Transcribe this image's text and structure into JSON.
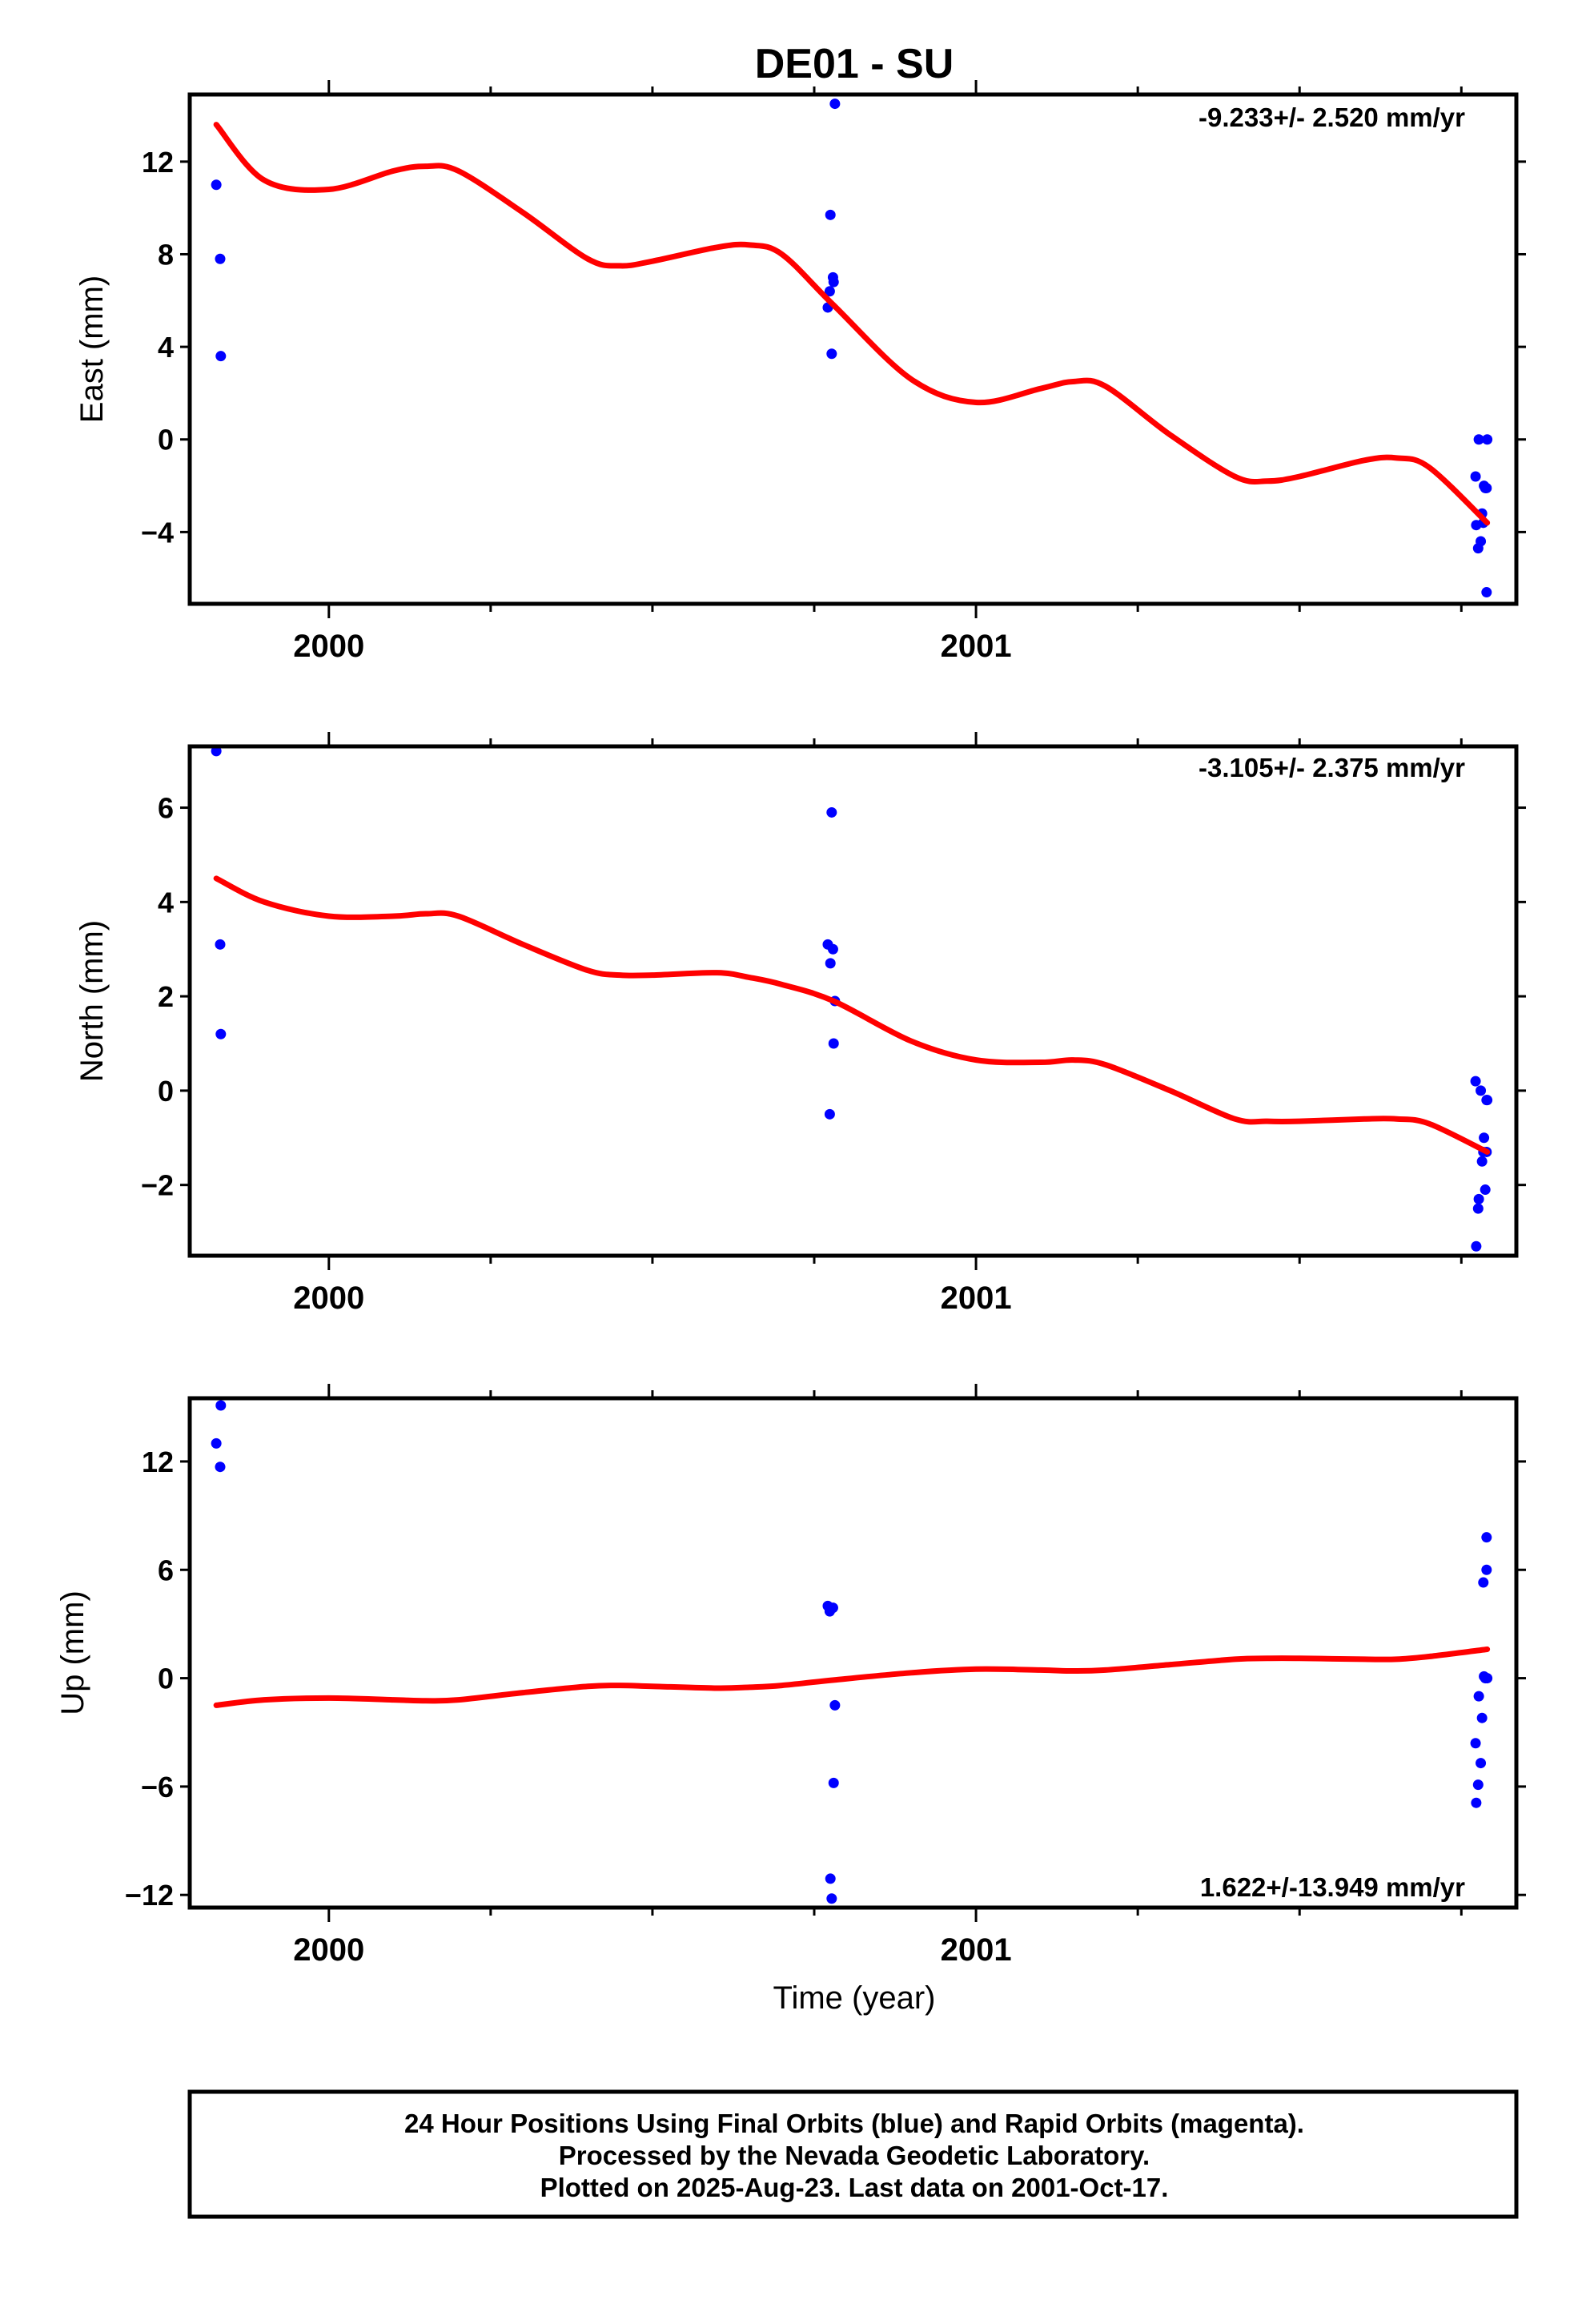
{
  "figure": {
    "title": "DE01 - SU",
    "xlabel": "Time (year)",
    "footer": [
      "24 Hour Positions Using Final Orbits (blue) and Rapid Orbits (magenta).",
      "Processed by the Nevada Geodetic Laboratory.",
      "Plotted on 2025-Aug-23. Last data on 2001-Oct-17."
    ]
  },
  "colors": {
    "points": "#0000ff",
    "fit": "#ff0000",
    "frame": "#000000"
  },
  "chart_data": [
    {
      "type": "scatter",
      "panel": "east",
      "ylabel": "East (mm)",
      "rate_text": "-9.233+/- 2.520 mm/yr",
      "rate_position": "top-right",
      "xlim": [
        1999.785,
        2001.835
      ],
      "ylim": [
        -7.1,
        14.9
      ],
      "xticks_major": [
        2000,
        2001
      ],
      "xticks_major_labels": [
        "2000",
        "2001"
      ],
      "xticks_minor": [
        2000.25,
        2000.5,
        2000.75,
        2001.25,
        2001.5,
        2001.75
      ],
      "yticks": [
        -4,
        0,
        4,
        8,
        12
      ],
      "yticks_labels": [
        "−4",
        "0",
        "4",
        "8",
        "12"
      ],
      "grid": false,
      "series": [
        {
          "style": "points",
          "x": [
            1999.826,
            1999.832,
            1999.833,
            2000.771,
            2000.774,
            2000.775,
            2000.777,
            2000.779,
            2000.78,
            2000.782,
            2001.772,
            2001.773,
            2001.776,
            2001.777,
            2001.78,
            2001.782,
            2001.784,
            2001.785,
            2001.787,
            2001.789,
            2001.789,
            2001.79
          ],
          "y": [
            11.0,
            7.8,
            3.6,
            5.7,
            6.4,
            9.7,
            3.7,
            7.0,
            6.8,
            14.5,
            -1.6,
            -3.7,
            -4.7,
            0.0,
            -4.4,
            -3.2,
            -3.6,
            -2.0,
            -2.1,
            -6.6,
            -2.1,
            0.0
          ]
        },
        {
          "style": "line",
          "x": [
            1999.826,
            1999.9,
            2000.0,
            2000.1,
            2000.15,
            2000.2,
            2000.3,
            2000.4,
            2000.45,
            2000.5,
            2000.6,
            2000.65,
            2000.7,
            2000.78,
            2000.9,
            2001.0,
            2001.1,
            2001.15,
            2001.2,
            2001.3,
            2001.4,
            2001.45,
            2001.5,
            2001.6,
            2001.65,
            2001.7,
            2001.79
          ],
          "y": [
            13.6,
            11.2,
            10.8,
            11.6,
            11.8,
            11.6,
            9.8,
            7.8,
            7.5,
            7.7,
            8.3,
            8.4,
            8.0,
            5.8,
            2.6,
            1.6,
            2.2,
            2.5,
            2.3,
            0.2,
            -1.6,
            -1.8,
            -1.6,
            -0.9,
            -0.8,
            -1.2,
            -3.6
          ]
        }
      ]
    },
    {
      "type": "scatter",
      "panel": "north",
      "ylabel": "North (mm)",
      "rate_text": "-3.105+/- 2.375 mm/yr",
      "rate_position": "top-right",
      "xlim": [
        1999.785,
        2001.835
      ],
      "ylim": [
        -3.5,
        7.3
      ],
      "xticks_major": [
        2000,
        2001
      ],
      "xticks_major_labels": [
        "2000",
        "2001"
      ],
      "xticks_minor": [
        2000.25,
        2000.5,
        2000.75,
        2001.25,
        2001.5,
        2001.75
      ],
      "yticks": [
        -2,
        0,
        2,
        4,
        6
      ],
      "yticks_labels": [
        "−2",
        "0",
        "2",
        "4",
        "6"
      ],
      "grid": false,
      "series": [
        {
          "style": "points",
          "x": [
            1999.826,
            1999.832,
            1999.833,
            2000.771,
            2000.774,
            2000.775,
            2000.777,
            2000.779,
            2000.78,
            2000.782,
            2001.772,
            2001.773,
            2001.776,
            2001.777,
            2001.78,
            2001.782,
            2001.784,
            2001.785,
            2001.787,
            2001.789,
            2001.789,
            2001.79
          ],
          "y": [
            7.2,
            3.1,
            1.2,
            3.1,
            -0.5,
            2.7,
            5.9,
            3.0,
            1.0,
            1.9,
            0.2,
            -3.3,
            -2.5,
            -2.3,
            0.0,
            -1.5,
            -1.3,
            -1.0,
            -2.1,
            -0.2,
            -1.3,
            -0.2
          ]
        },
        {
          "style": "line",
          "x": [
            1999.826,
            1999.9,
            2000.0,
            2000.1,
            2000.15,
            2000.2,
            2000.3,
            2000.4,
            2000.45,
            2000.5,
            2000.6,
            2000.65,
            2000.7,
            2000.78,
            2000.9,
            2001.0,
            2001.1,
            2001.15,
            2001.2,
            2001.3,
            2001.4,
            2001.45,
            2001.5,
            2001.6,
            2001.65,
            2001.7,
            2001.79
          ],
          "y": [
            4.5,
            4.0,
            3.7,
            3.7,
            3.75,
            3.7,
            3.1,
            2.55,
            2.45,
            2.45,
            2.5,
            2.4,
            2.25,
            1.9,
            1.05,
            0.65,
            0.6,
            0.65,
            0.55,
            0.0,
            -0.6,
            -0.65,
            -0.65,
            -0.6,
            -0.6,
            -0.7,
            -1.3
          ]
        }
      ]
    },
    {
      "type": "scatter",
      "panel": "up",
      "ylabel": "Up (mm)",
      "rate_text": "1.622+/-13.949 mm/yr",
      "rate_position": "bottom-right",
      "xlim": [
        1999.785,
        2001.835
      ],
      "ylim": [
        -12.7,
        15.5
      ],
      "xticks_major": [
        2000,
        2001
      ],
      "xticks_major_labels": [
        "2000",
        "2001"
      ],
      "xticks_minor": [
        2000.25,
        2000.5,
        2000.75,
        2001.25,
        2001.5,
        2001.75
      ],
      "yticks": [
        -12,
        -6,
        0,
        6,
        12
      ],
      "yticks_labels": [
        "−12",
        "−6",
        "0",
        "6",
        "12"
      ],
      "grid": false,
      "series": [
        {
          "style": "points",
          "x": [
            1999.826,
            1999.832,
            1999.833,
            2000.771,
            2000.774,
            2000.775,
            2000.777,
            2000.779,
            2000.78,
            2000.782,
            2001.772,
            2001.773,
            2001.776,
            2001.777,
            2001.78,
            2001.782,
            2001.784,
            2001.785,
            2001.787,
            2001.789,
            2001.789,
            2001.79
          ],
          "y": [
            13.0,
            11.7,
            15.1,
            4.0,
            3.7,
            -11.1,
            -12.2,
            3.9,
            -5.8,
            -1.5,
            -3.6,
            -6.9,
            -5.9,
            -1.0,
            -4.7,
            -2.2,
            5.3,
            0.1,
            0.0,
            7.8,
            6.0,
            0.0
          ]
        },
        {
          "style": "line",
          "x": [
            1999.826,
            1999.9,
            2000.0,
            2000.1,
            2000.15,
            2000.2,
            2000.3,
            2000.4,
            2000.45,
            2000.5,
            2000.6,
            2000.65,
            2000.7,
            2000.78,
            2000.9,
            2001.0,
            2001.1,
            2001.15,
            2001.2,
            2001.3,
            2001.4,
            2001.45,
            2001.5,
            2001.6,
            2001.65,
            2001.7,
            2001.79
          ],
          "y": [
            -1.5,
            -1.2,
            -1.1,
            -1.2,
            -1.25,
            -1.2,
            -0.8,
            -0.45,
            -0.4,
            -0.45,
            -0.55,
            -0.5,
            -0.4,
            -0.1,
            0.3,
            0.5,
            0.45,
            0.4,
            0.45,
            0.75,
            1.05,
            1.1,
            1.1,
            1.05,
            1.05,
            1.2,
            1.6
          ]
        }
      ]
    }
  ]
}
